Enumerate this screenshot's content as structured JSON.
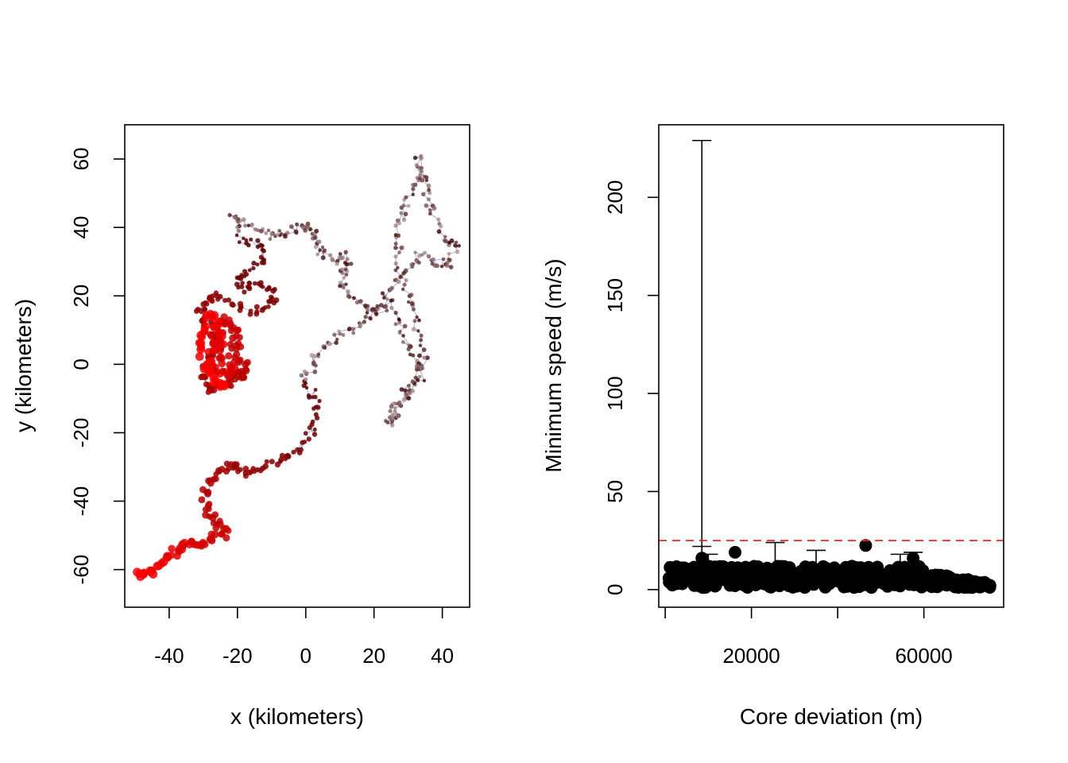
{
  "chart_data": [
    {
      "type": "scatter",
      "title": "",
      "xlabel": "x (kilometers)",
      "ylabel": "y (kilometers)",
      "xlim": [
        -53,
        48
      ],
      "ylim": [
        -71,
        70
      ],
      "xticks": [
        -40,
        -20,
        0,
        20,
        40
      ],
      "xtick_labels": [
        "-40",
        "-20",
        "0",
        "20",
        "40"
      ],
      "yticks": [
        -60,
        -40,
        -20,
        0,
        20,
        40,
        60
      ],
      "ytick_labels": [
        "-60",
        "-40",
        "-20",
        "0",
        "20",
        "40",
        "60"
      ],
      "grid": false,
      "colors": {
        "track_line": "#3a46a8",
        "light_point": "#b09a9a",
        "dark_point": "#3a0000",
        "end_point": "#ff0000"
      },
      "track": [
        [
          -49.5,
          -62
        ],
        [
          -47,
          -61
        ],
        [
          -44,
          -60
        ],
        [
          -41,
          -57.5
        ],
        [
          -38,
          -55
        ],
        [
          -36,
          -53
        ],
        [
          -33,
          -52
        ],
        [
          -30,
          -53
        ],
        [
          -27,
          -51
        ],
        [
          -23,
          -48
        ],
        [
          -26,
          -47
        ],
        [
          -29,
          -44
        ],
        [
          -29,
          -40
        ],
        [
          -28,
          -36
        ],
        [
          -27,
          -33
        ],
        [
          -24,
          -30
        ],
        [
          -21,
          -29
        ],
        [
          -19,
          -31
        ],
        [
          -16,
          -32
        ],
        [
          -12,
          -31
        ],
        [
          -8,
          -29
        ],
        [
          -5,
          -27
        ],
        [
          -2,
          -24
        ],
        [
          1,
          -20
        ],
        [
          3,
          -15
        ],
        [
          4,
          -11
        ],
        [
          1,
          -7
        ],
        [
          -1,
          -4
        ],
        [
          1,
          -1
        ],
        [
          3,
          2
        ],
        [
          5,
          5
        ],
        [
          9,
          8
        ],
        [
          13,
          10
        ],
        [
          16,
          12
        ],
        [
          20,
          15
        ],
        [
          22,
          16
        ],
        [
          25,
          18
        ],
        [
          27,
          12
        ],
        [
          29,
          8
        ],
        [
          31,
          4
        ],
        [
          33,
          0
        ],
        [
          34,
          -3
        ],
        [
          32,
          -6
        ],
        [
          30,
          -9
        ],
        [
          27,
          -11
        ],
        [
          25,
          -14
        ],
        [
          24,
          -18
        ],
        [
          26,
          -15
        ],
        [
          28,
          -12
        ],
        [
          30,
          -7
        ],
        [
          33,
          -2
        ],
        [
          35,
          2
        ],
        [
          34,
          8
        ],
        [
          32,
          14
        ],
        [
          30,
          20
        ],
        [
          28,
          26
        ],
        [
          27,
          32
        ],
        [
          26,
          38
        ],
        [
          28,
          43
        ],
        [
          30,
          47
        ],
        [
          31,
          52
        ],
        [
          33,
          56
        ],
        [
          33,
          60
        ],
        [
          35,
          55
        ],
        [
          36,
          50
        ],
        [
          37,
          45
        ],
        [
          39,
          40
        ],
        [
          42,
          36
        ],
        [
          44,
          35
        ],
        [
          43,
          31
        ],
        [
          41,
          28
        ],
        [
          38,
          30
        ],
        [
          35,
          32
        ],
        [
          32,
          30
        ],
        [
          29,
          27
        ],
        [
          26,
          24
        ],
        [
          24,
          20
        ],
        [
          22,
          17
        ],
        [
          18,
          16
        ],
        [
          15,
          18
        ],
        [
          12,
          21
        ],
        [
          10,
          24
        ],
        [
          11,
          27
        ],
        [
          13,
          30
        ],
        [
          10,
          32
        ],
        [
          8,
          30
        ],
        [
          5,
          32
        ],
        [
          3,
          35
        ],
        [
          2,
          38
        ],
        [
          1,
          41
        ],
        [
          -2,
          40
        ],
        [
          -5,
          38
        ],
        [
          -8,
          37
        ],
        [
          -11,
          38
        ],
        [
          -14,
          40
        ],
        [
          -18,
          42
        ],
        [
          -21,
          43
        ],
        [
          -20,
          39
        ],
        [
          -18,
          36
        ],
        [
          -14,
          35
        ],
        [
          -12,
          32
        ],
        [
          -14,
          29
        ],
        [
          -17,
          27
        ],
        [
          -20,
          25
        ],
        [
          -19,
          22
        ],
        [
          -16,
          23
        ],
        [
          -12,
          24
        ],
        [
          -10,
          21
        ],
        [
          -9,
          18
        ],
        [
          -12,
          16
        ],
        [
          -16,
          15
        ],
        [
          -20,
          17
        ],
        [
          -24,
          19
        ],
        [
          -28,
          20
        ],
        [
          -30,
          18
        ],
        [
          -31,
          15
        ],
        [
          -29,
          12
        ],
        [
          -27,
          9
        ],
        [
          -25,
          6
        ],
        [
          -27,
          3
        ],
        [
          -29,
          0
        ],
        [
          -30,
          -3
        ],
        [
          -29,
          -6
        ],
        [
          -27,
          -8
        ],
        [
          -24,
          -6
        ],
        [
          -22,
          -4
        ],
        [
          -20,
          -2
        ],
        [
          -18,
          -4
        ],
        [
          -17,
          -1
        ],
        [
          -19,
          2
        ],
        [
          -21,
          5
        ],
        [
          -20,
          8
        ],
        [
          -22,
          11
        ],
        [
          -24,
          13
        ],
        [
          -26,
          10
        ],
        [
          -28,
          7
        ],
        [
          -26,
          4
        ],
        [
          -23,
          1
        ],
        [
          -21,
          -1
        ],
        [
          -24,
          -3
        ],
        [
          -27,
          -2
        ],
        [
          -28,
          2
        ],
        [
          -26,
          6
        ],
        [
          -24,
          9
        ],
        [
          -26,
          12
        ],
        [
          -28,
          15
        ],
        [
          -30,
          10
        ],
        [
          -31,
          5
        ],
        [
          -29,
          -1
        ],
        [
          -26,
          -5
        ],
        [
          -24,
          -7
        ]
      ]
    },
    {
      "type": "scatter",
      "title": "",
      "xlabel": "Core deviation (m)",
      "ylabel": "Minimum speed (m/s)",
      "xlim": [
        -1500,
        78500
      ],
      "ylim": [
        -9,
        237
      ],
      "xticks": [
        0,
        20000,
        40000,
        60000
      ],
      "xtick_labels": [
        "",
        "20000",
        "",
        "60000"
      ],
      "yticks": [
        0,
        50,
        100,
        150,
        200
      ],
      "ytick_labels": [
        "0",
        "50",
        "100",
        "150",
        "200"
      ],
      "grid": false,
      "threshold": 25,
      "colors": {
        "point": "#000000",
        "threshold": "#e8262a"
      },
      "highlighted_points": [
        {
          "x": 8500,
          "y": 16,
          "err_hi": 229
        },
        {
          "x": 16200,
          "y": 19,
          "err_hi": 19
        },
        {
          "x": 46500,
          "y": 22.5,
          "err_hi": 22.5
        },
        {
          "x": 57500,
          "y": 16,
          "err_hi": 19
        }
      ],
      "error_bar_caps": [
        {
          "x": 2500,
          "y": 14
        },
        {
          "x": 8500,
          "y": 22
        },
        {
          "x": 10000,
          "y": 18
        },
        {
          "x": 25500,
          "y": 24
        },
        {
          "x": 35000,
          "y": 20
        },
        {
          "x": 54500,
          "y": 18
        }
      ]
    }
  ]
}
